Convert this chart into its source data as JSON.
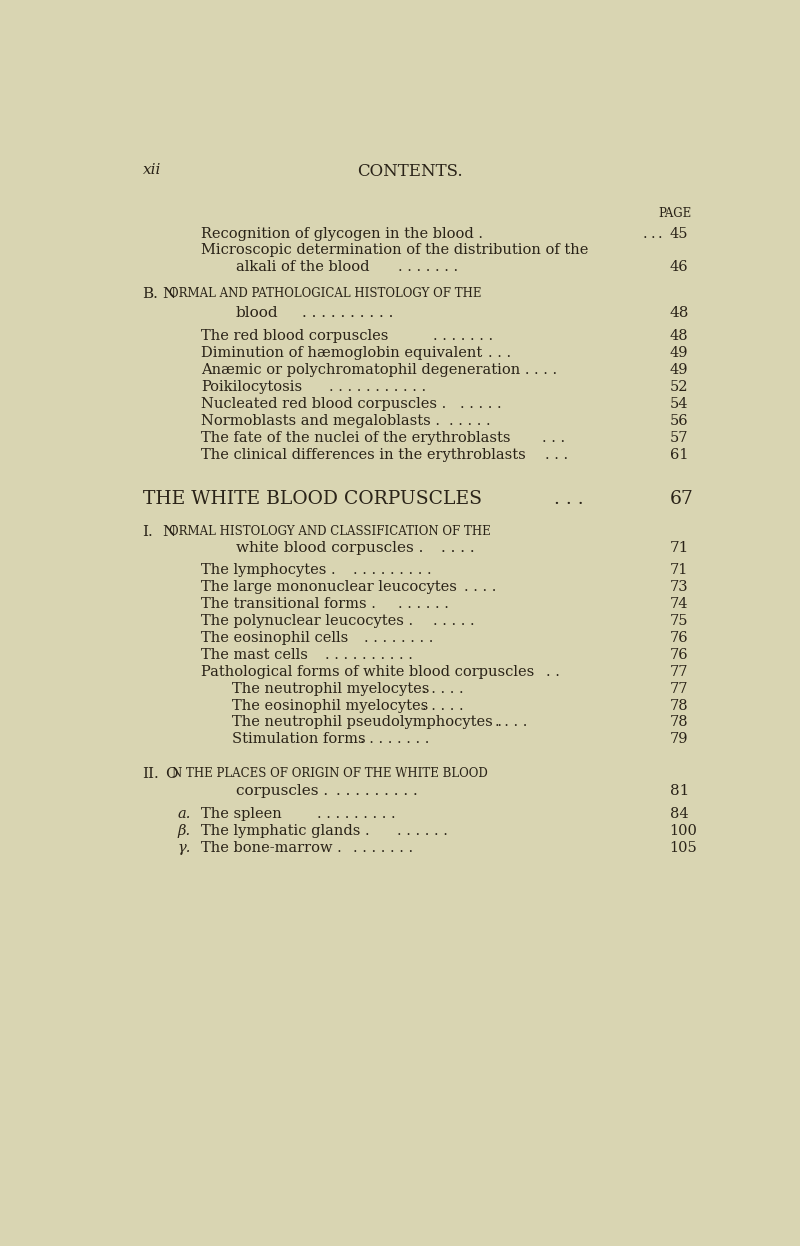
{
  "bg_color": "#d9d5b2",
  "text_color": "#2a2318",
  "page_header_left": "xii",
  "page_header_center": "CONTENTS.",
  "page_label": "PAGE"
}
